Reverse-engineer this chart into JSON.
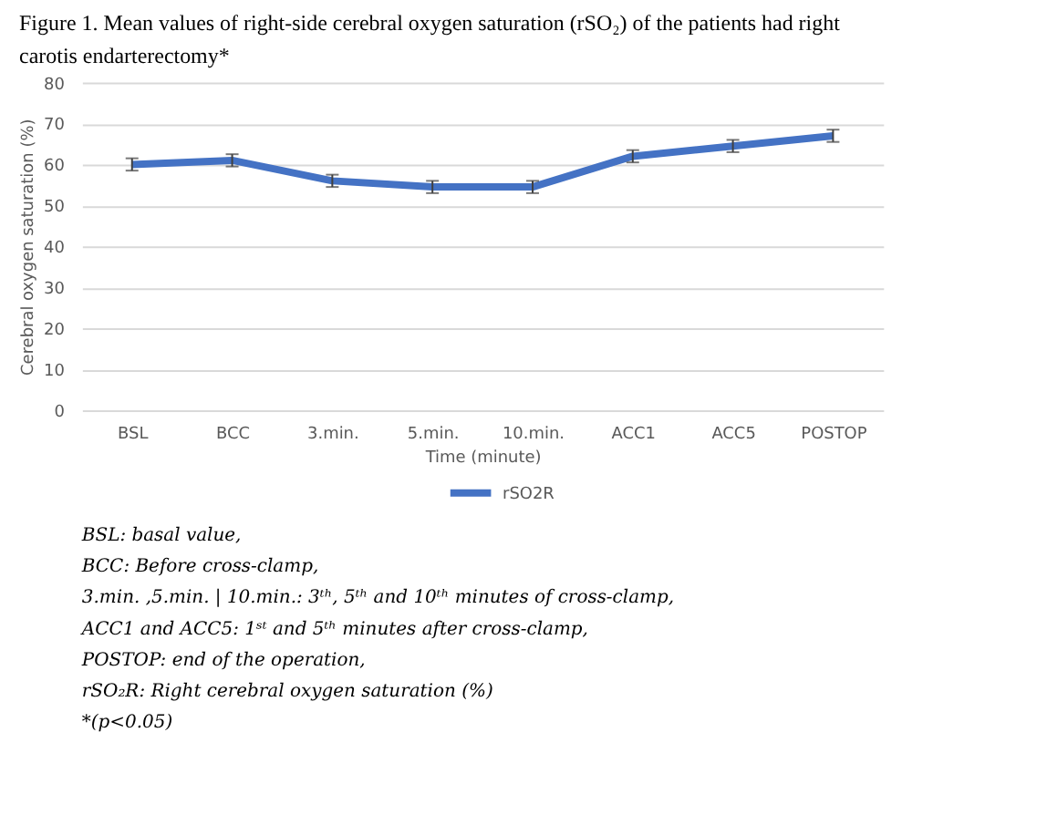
{
  "chart_data": {
    "type": "line",
    "title": [
      "Figure 1. Mean values of right-side cerebral oxygen saturation (rSO₂) of the patients had right",
      "carotis endarterectomy*"
    ],
    "xlabel": "Time (minute)",
    "ylabel": "Cerebral oxygen saturation (%)",
    "categories": [
      "BSL",
      "BCC",
      "3.min.",
      "5.min.",
      "10.min.",
      "ACC1",
      "ACC5",
      "POSTOP"
    ],
    "series": [
      {
        "name": "rSO2R",
        "color": "#4472c4",
        "values": [
          60,
          61,
          56,
          54.5,
          54.5,
          62,
          64.5,
          67
        ],
        "errors": [
          1.5,
          1.5,
          1.5,
          1.5,
          1.5,
          1.5,
          1.5,
          1.5
        ]
      }
    ],
    "ylim": [
      0,
      80
    ],
    "yticks": [
      0,
      10,
      20,
      30,
      40,
      50,
      60,
      70,
      80
    ],
    "grid": "y",
    "legend": "bottom",
    "line_style": "solid",
    "annotations": [
      "BSL: basal value,",
      "BCC: Before cross-clamp,",
      "3.min. ,5.min. | 10.min.: 3ᵗʰ, 5ᵗʰ and 10ᵗʰ minutes of cross-clamp,",
      "ACC1 and ACC5: 1ˢᵗ and 5ᵗʰ minutes after cross-clamp,",
      "POSTOP: end of the operation,",
      "rSO₂R: Right cerebral oxygen saturation (%)",
      "*(p<0.05)"
    ]
  }
}
